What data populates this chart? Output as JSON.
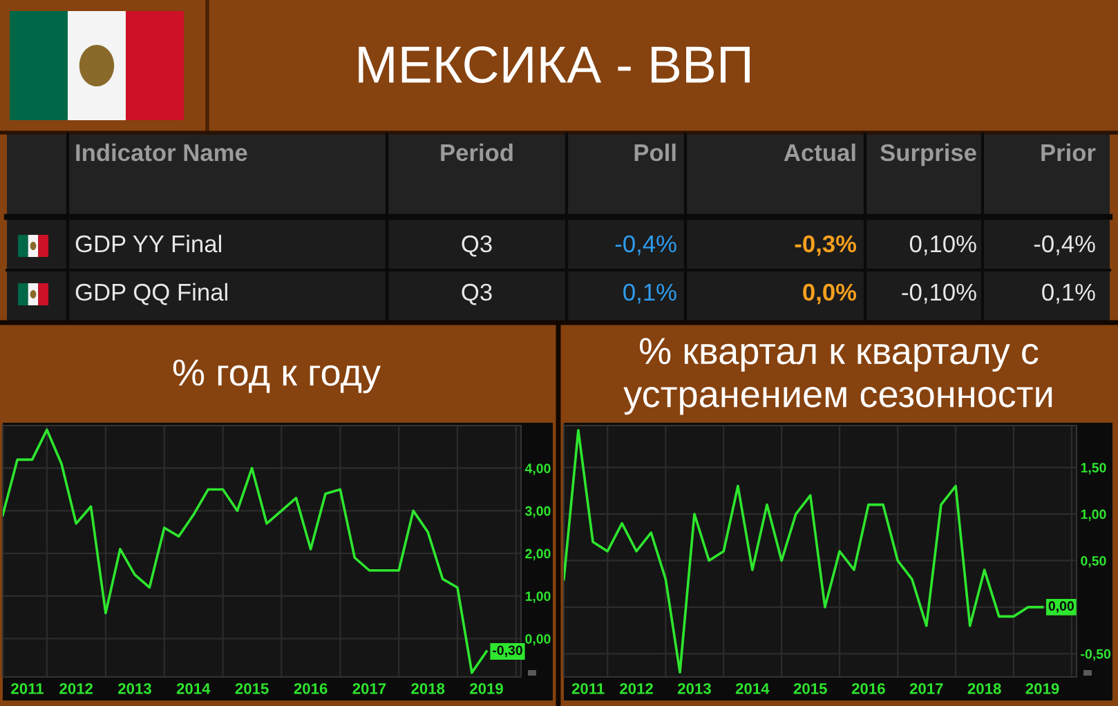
{
  "chart_data": [
    {
      "type": "other",
      "title": "МЕКСИКА - ВВП",
      "categories": [
        "Indicator Name",
        "Period",
        "Poll",
        "Actual",
        "Surprise",
        "Prior"
      ],
      "annotations": [
        "GDP YY Final",
        "Q3",
        "-0,4%",
        "-0,3%",
        "0,10%",
        "-0,4%",
        "GDP QQ Final",
        "Q3",
        "0,1%",
        "0,0%",
        "-0,10%",
        "0,1%"
      ]
    },
    {
      "type": "line",
      "title": "% год к году",
      "x": [
        "2011-04",
        "2011-07",
        "2011-10",
        "2012-01",
        "2012-04",
        "2012-07",
        "2012-10",
        "2013-01",
        "2013-04",
        "2013-07",
        "2013-10",
        "2014-01",
        "2014-04",
        "2014-07",
        "2014-10",
        "2015-01",
        "2015-04",
        "2015-07",
        "2015-10",
        "2016-01",
        "2016-04",
        "2016-07",
        "2016-10",
        "2017-01",
        "2017-04",
        "2017-07",
        "2017-10",
        "2018-01",
        "2018-04",
        "2018-07",
        "2018-10",
        "2019-01",
        "2019-04",
        "2019-07"
      ],
      "series": [
        {
          "color": "#2ee62e",
          "values": [
            2.9,
            4.2,
            4.2,
            4.9,
            4.1,
            2.7,
            3.1,
            0.6,
            2.1,
            1.5,
            1.2,
            2.6,
            2.4,
            2.9,
            3.5,
            3.5,
            3.0,
            4.0,
            2.7,
            3.0,
            3.3,
            2.1,
            3.4,
            3.5,
            1.9,
            1.6,
            1.6,
            1.6,
            3.0,
            2.5,
            1.4,
            1.2,
            -0.8,
            -0.3
          ],
          "value_labels": [
            null,
            null,
            null,
            null,
            null,
            null,
            null,
            null,
            null,
            null,
            null,
            null,
            null,
            null,
            null,
            null,
            null,
            null,
            null,
            null,
            null,
            null,
            null,
            null,
            null,
            null,
            null,
            null,
            null,
            null,
            null,
            null,
            null,
            "-0,30"
          ]
        }
      ],
      "xlim": [
        "2011-04",
        "2020-02"
      ],
      "ylim": [
        -0.9,
        5.0
      ],
      "xticks": [
        {
          "value": "2012-01",
          "label": null
        },
        {
          "value": "2013-01",
          "label": null
        },
        {
          "value": "2014-01",
          "label": null
        },
        {
          "value": "2015-01",
          "label": null
        },
        {
          "value": "2016-01",
          "label": null
        },
        {
          "value": "2017-01",
          "label": null
        },
        {
          "value": "2018-01",
          "label": null
        },
        {
          "value": "2019-01",
          "label": null
        },
        {
          "value": "2020-01",
          "label": null
        },
        {
          "value": "2011-09",
          "label": "2011"
        },
        {
          "value": "2012-07",
          "label": "2012"
        },
        {
          "value": "2013-07",
          "label": "2013"
        },
        {
          "value": "2014-07",
          "label": "2014"
        },
        {
          "value": "2015-07",
          "label": "2015"
        },
        {
          "value": "2016-07",
          "label": "2016"
        },
        {
          "value": "2017-07",
          "label": "2017"
        },
        {
          "value": "2018-07",
          "label": "2018"
        },
        {
          "value": "2019-07",
          "label": "2019"
        }
      ],
      "yticks": [
        {
          "value": 0,
          "label": "0,00"
        },
        {
          "value": 1,
          "label": "1,00"
        },
        {
          "value": 2,
          "label": "2,00"
        },
        {
          "value": 3,
          "label": "3,00"
        },
        {
          "value": 4,
          "label": "4,00"
        }
      ],
      "grid": true
    },
    {
      "type": "line",
      "title": "% квартал к кварталу с устранением сезонности",
      "x": [
        "2011-04",
        "2011-07",
        "2011-10",
        "2012-01",
        "2012-04",
        "2012-07",
        "2012-10",
        "2013-01",
        "2013-04",
        "2013-07",
        "2013-10",
        "2014-01",
        "2014-04",
        "2014-07",
        "2014-10",
        "2015-01",
        "2015-04",
        "2015-07",
        "2015-10",
        "2016-01",
        "2016-04",
        "2016-07",
        "2016-10",
        "2017-01",
        "2017-04",
        "2017-07",
        "2017-10",
        "2018-01",
        "2018-04",
        "2018-07",
        "2018-10",
        "2019-01",
        "2019-04",
        "2019-07"
      ],
      "series": [
        {
          "color": "#2ee62e",
          "values": [
            0.3,
            1.9,
            0.7,
            0.6,
            0.9,
            0.6,
            0.8,
            0.3,
            -0.7,
            1.0,
            0.5,
            0.6,
            1.3,
            0.4,
            1.1,
            0.5,
            1.0,
            1.2,
            0.0,
            0.6,
            0.4,
            1.1,
            1.1,
            0.5,
            0.3,
            -0.2,
            1.1,
            1.3,
            -0.2,
            0.4,
            -0.1,
            -0.1,
            0.0,
            0.0
          ],
          "value_labels": [
            null,
            null,
            null,
            null,
            null,
            null,
            null,
            null,
            null,
            null,
            null,
            null,
            null,
            null,
            null,
            null,
            null,
            null,
            null,
            null,
            null,
            null,
            null,
            null,
            null,
            null,
            null,
            null,
            null,
            null,
            null,
            null,
            null,
            "0,00"
          ]
        }
      ],
      "xlim": [
        "2011-04",
        "2020-02"
      ],
      "ylim": [
        -0.75,
        1.95
      ],
      "xticks": [
        {
          "value": "2012-01",
          "label": null
        },
        {
          "value": "2013-01",
          "label": null
        },
        {
          "value": "2014-01",
          "label": null
        },
        {
          "value": "2015-01",
          "label": null
        },
        {
          "value": "2016-01",
          "label": null
        },
        {
          "value": "2017-01",
          "label": null
        },
        {
          "value": "2018-01",
          "label": null
        },
        {
          "value": "2019-01",
          "label": null
        },
        {
          "value": "2020-01",
          "label": null
        },
        {
          "value": "2011-09",
          "label": "2011"
        },
        {
          "value": "2012-07",
          "label": "2012"
        },
        {
          "value": "2013-07",
          "label": "2013"
        },
        {
          "value": "2014-07",
          "label": "2014"
        },
        {
          "value": "2015-07",
          "label": "2015"
        },
        {
          "value": "2016-07",
          "label": "2016"
        },
        {
          "value": "2017-07",
          "label": "2017"
        },
        {
          "value": "2018-07",
          "label": "2018"
        },
        {
          "value": "2019-07",
          "label": "2019"
        }
      ],
      "yticks": [
        {
          "value": -0.5,
          "label": "-0,50"
        },
        {
          "value": 0,
          "label": null
        },
        {
          "value": 0.5,
          "label": "0,50"
        },
        {
          "value": 1,
          "label": "1,00"
        },
        {
          "value": 1.5,
          "label": "1,50"
        }
      ],
      "grid": true
    }
  ]
}
